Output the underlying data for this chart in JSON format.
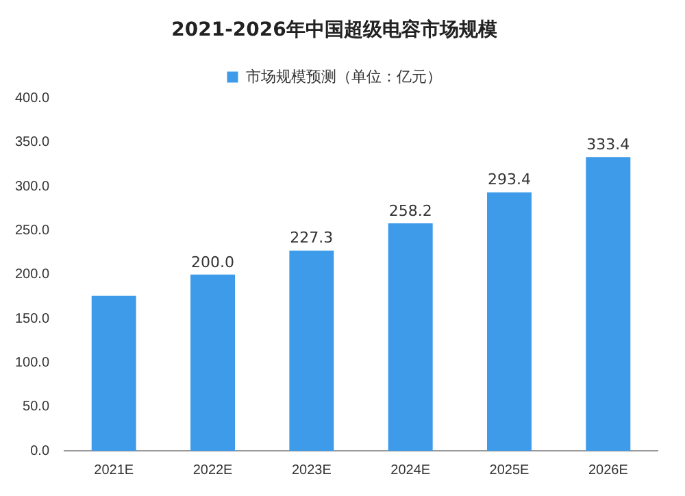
{
  "chart_data": {
    "type": "bar",
    "title": "2021-2026年中国超级电容市场规模",
    "categories": [
      "2021E",
      "2022E",
      "2023E",
      "2024E",
      "2025E",
      "2026E"
    ],
    "series": [
      {
        "name": "市场规模预测（单位：亿元）",
        "color": "#3d9be9",
        "values": [
          176,
          200.0,
          227.3,
          258.2,
          293.4,
          333.4
        ],
        "value_labels": [
          null,
          "200.0",
          "227.3",
          "258.2",
          "293.4",
          "333.4"
        ]
      }
    ],
    "ylim": [
      0,
      400
    ],
    "yticks": [
      {
        "value": 0,
        "label": "0.0"
      },
      {
        "value": 50,
        "label": "50.0"
      },
      {
        "value": 100,
        "label": "100.0"
      },
      {
        "value": 150,
        "label": "150.0"
      },
      {
        "value": 200,
        "label": "200.0"
      },
      {
        "value": 250,
        "label": "250.0"
      },
      {
        "value": 300,
        "label": "300.0"
      },
      {
        "value": 350,
        "label": "350.0"
      },
      {
        "value": 400,
        "label": "400.0"
      }
    ],
    "grid": false,
    "legend": "top"
  }
}
